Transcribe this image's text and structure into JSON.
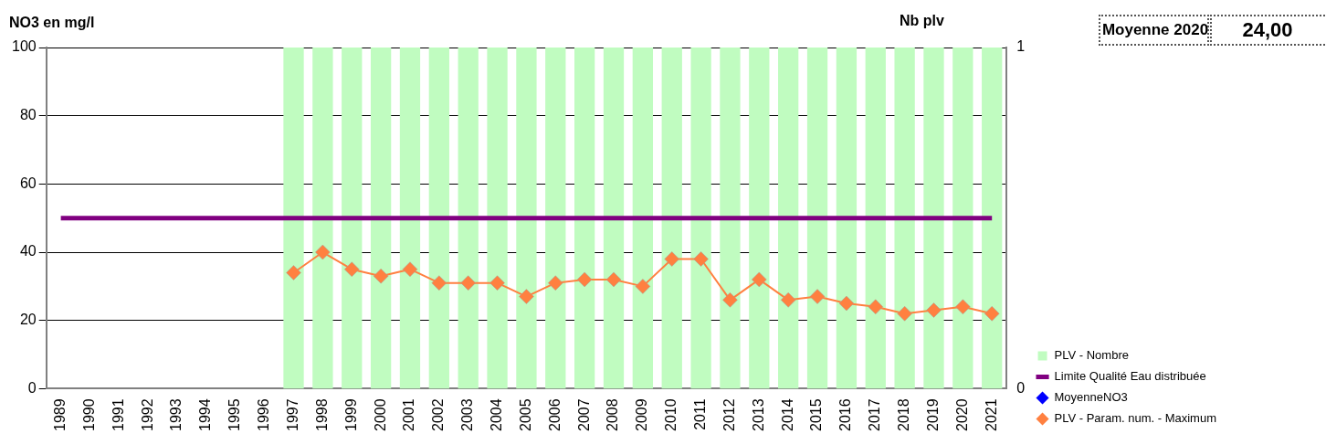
{
  "chart_data": {
    "type": "bar",
    "ylabel": "NO3 en mg/l",
    "y2label": "Nb plv",
    "annotations": [
      "Moyenne 2020",
      "24,00"
    ],
    "categories": [
      "1989",
      "1990",
      "1991",
      "1992",
      "1993",
      "1994",
      "1995",
      "1996",
      "1997",
      "1998",
      "1999",
      "2000",
      "2001",
      "2002",
      "2003",
      "2004",
      "2005",
      "2006",
      "2007",
      "2008",
      "2009",
      "2010",
      "2011",
      "2012",
      "2013",
      "2014",
      "2015",
      "2016",
      "2017",
      "2018",
      "2019",
      "2020",
      "2021"
    ],
    "ylim": [
      0,
      100
    ],
    "yticks": [
      0,
      20,
      40,
      60,
      80,
      100
    ],
    "y2lim": [
      0,
      1
    ],
    "y2ticks": [
      0,
      1
    ],
    "grid": "y",
    "legend": "right",
    "series": [
      {
        "name": "PLV - Nombre",
        "axis": "y2",
        "color": "#c0fcc0",
        "values": [
          null,
          null,
          null,
          null,
          null,
          null,
          null,
          null,
          1,
          1,
          1,
          1,
          1,
          1,
          1,
          1,
          1,
          1,
          1,
          1,
          1,
          1,
          1,
          1,
          1,
          1,
          1,
          1,
          1,
          1,
          1,
          1,
          1
        ]
      },
      {
        "name": "Limite Qualité Eau distribuée",
        "type": "line",
        "color": "#800080",
        "marker": "none",
        "values": [
          50,
          50,
          50,
          50,
          50,
          50,
          50,
          50,
          50,
          50,
          50,
          50,
          50,
          50,
          50,
          50,
          50,
          50,
          50,
          50,
          50,
          50,
          50,
          50,
          50,
          50,
          50,
          50,
          50,
          50,
          50,
          50,
          50
        ]
      },
      {
        "name": "MoyenneNO3",
        "type": "line",
        "color": "#0000ff",
        "marker": "diamond",
        "values": [
          null,
          null,
          null,
          null,
          null,
          null,
          null,
          null,
          null,
          null,
          null,
          null,
          null,
          null,
          null,
          null,
          null,
          null,
          null,
          null,
          null,
          null,
          null,
          null,
          null,
          null,
          null,
          null,
          null,
          null,
          null,
          null,
          null
        ]
      },
      {
        "name": "PLV - Param. num. - Maximum",
        "type": "line",
        "color": "#ff8040",
        "marker": "diamond",
        "values": [
          null,
          null,
          null,
          null,
          null,
          null,
          null,
          null,
          34,
          40,
          35,
          33,
          35,
          31,
          31,
          31,
          27,
          31,
          32,
          32,
          30,
          38,
          38,
          26,
          32,
          26,
          27,
          25,
          24,
          22,
          23,
          24,
          22
        ]
      }
    ]
  }
}
